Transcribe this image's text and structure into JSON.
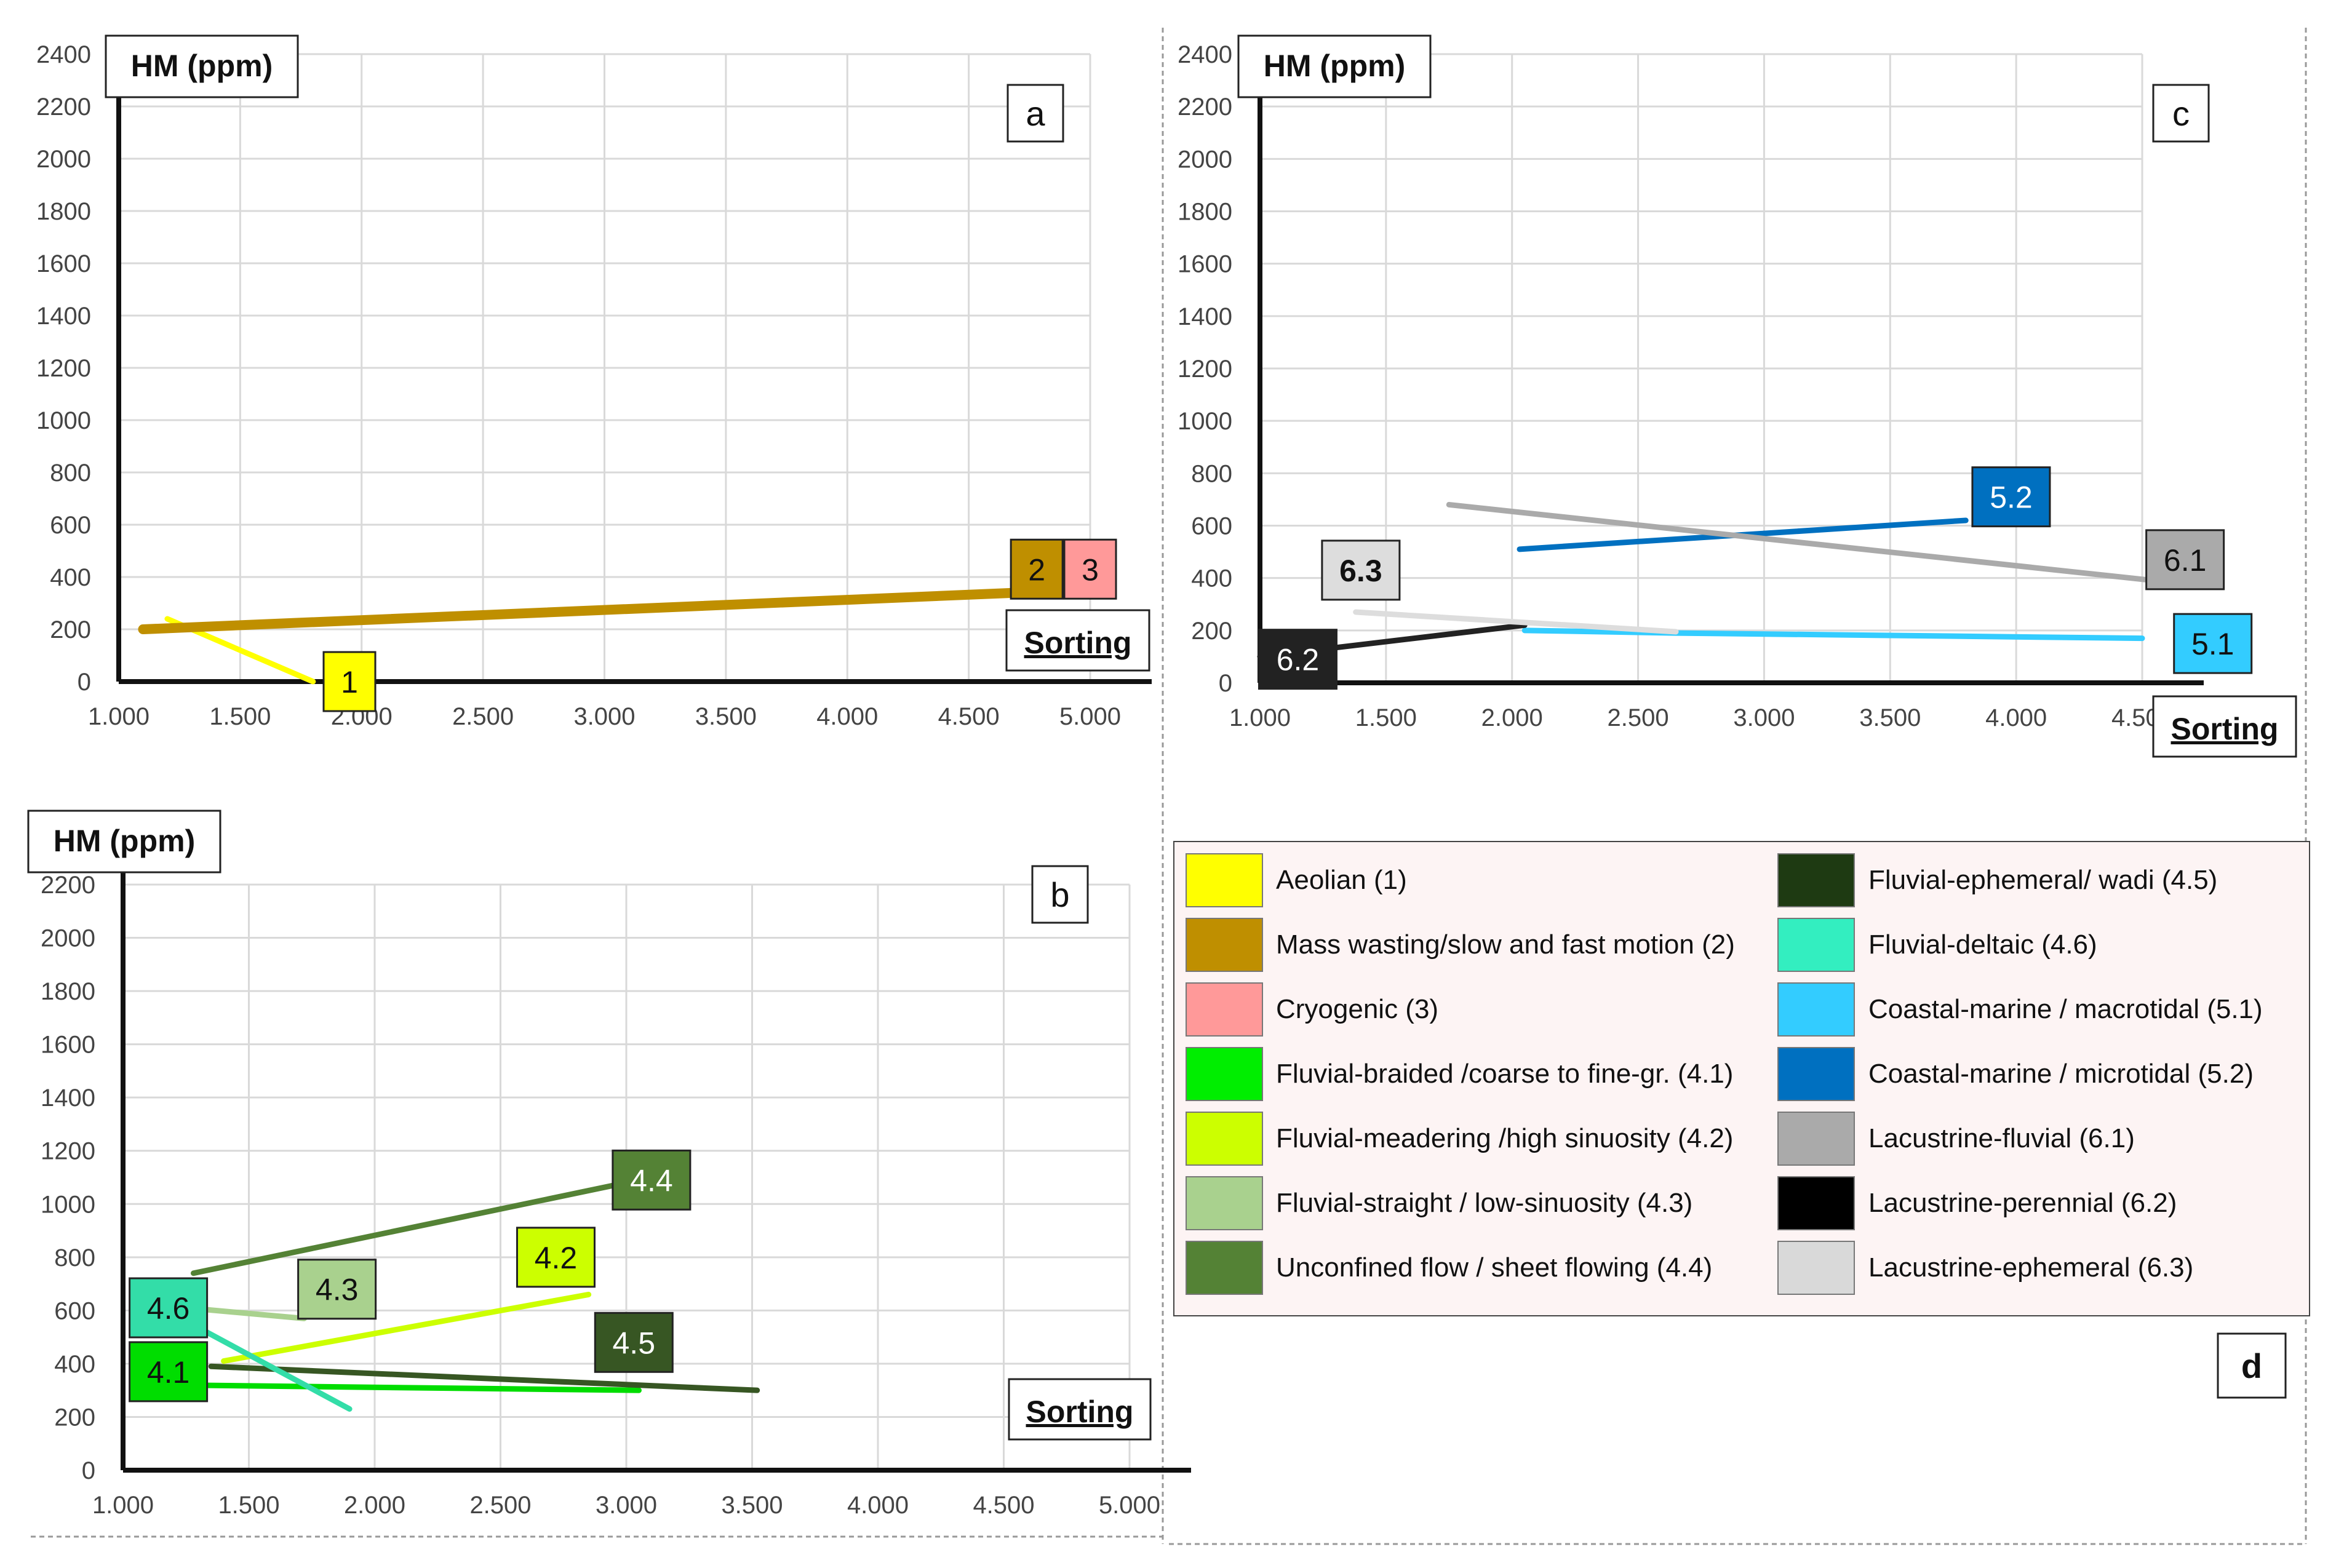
{
  "chart_data": [
    {
      "panel": "a",
      "type": "line",
      "ylabel": "HM (ppm)",
      "xlabel": "Sorting",
      "xlim": [
        1.0,
        5.0
      ],
      "ylim": [
        0,
        2400
      ],
      "xticks": [
        "1.000",
        "1.500",
        "2.000",
        "2.500",
        "3.000",
        "3.500",
        "4.000",
        "4.500",
        "5.000"
      ],
      "yticks": [
        "0",
        "200",
        "400",
        "600",
        "800",
        "1000",
        "1200",
        "1400",
        "1600",
        "1800",
        "2000",
        "2200",
        "2400"
      ],
      "grid": true,
      "series": [
        {
          "name": "1",
          "color": "#ffff00",
          "x": [
            1.2,
            1.8
          ],
          "y": [
            240,
            0
          ],
          "label_at": [
            1.95,
            0
          ]
        },
        {
          "name": "2",
          "color": "#bf8f00",
          "x": [
            1.1,
            4.7
          ],
          "y": [
            200,
            340
          ],
          "label_at": [
            4.78,
            430
          ]
        },
        {
          "name": "3",
          "color": "#ff9999",
          "x": [],
          "y": [],
          "label_at": [
            5.0,
            430
          ]
        }
      ]
    },
    {
      "panel": "b",
      "type": "line",
      "ylabel": "HM (ppm)",
      "xlabel": "Sorting",
      "xlim": [
        1.0,
        5.0
      ],
      "ylim": [
        0,
        2200
      ],
      "xticks": [
        "1.000",
        "1.500",
        "2.000",
        "2.500",
        "3.000",
        "3.500",
        "4.000",
        "4.500",
        "5.000"
      ],
      "yticks": [
        "0",
        "200",
        "400",
        "600",
        "800",
        "1000",
        "1200",
        "1400",
        "1600",
        "1800",
        "2000",
        "2200"
      ],
      "grid": true,
      "series": [
        {
          "name": "4.1",
          "color": "#00dd00",
          "x": [
            1.2,
            3.05
          ],
          "y": [
            320,
            300
          ],
          "label_at": [
            1.18,
            370
          ]
        },
        {
          "name": "4.2",
          "color": "#ccff00",
          "x": [
            1.4,
            2.85
          ],
          "y": [
            410,
            660
          ],
          "label_at": [
            2.72,
            800
          ]
        },
        {
          "name": "4.3",
          "color": "#a9d18e",
          "x": [
            1.25,
            1.72
          ],
          "y": [
            610,
            570
          ],
          "label_at": [
            1.85,
            680
          ]
        },
        {
          "name": "4.4",
          "color": "#548235",
          "x": [
            1.28,
            3.0
          ],
          "y": [
            740,
            1080
          ],
          "label_at": [
            3.1,
            1090
          ]
        },
        {
          "name": "4.5",
          "color": "#375623",
          "x": [
            1.35,
            3.52
          ],
          "y": [
            390,
            300
          ],
          "label_at": [
            3.03,
            480
          ]
        },
        {
          "name": "4.6",
          "color": "#33dda8",
          "x": [
            1.33,
            1.9
          ],
          "y": [
            520,
            230
          ],
          "label_at": [
            1.18,
            610
          ]
        }
      ]
    },
    {
      "panel": "c",
      "type": "line",
      "ylabel": "HM (ppm)",
      "xlabel": "Sorting",
      "xlim": [
        1.0,
        4.5
      ],
      "ylim": [
        0,
        2400
      ],
      "xticks": [
        "1.000",
        "1.500",
        "2.000",
        "2.500",
        "3.000",
        "3.500",
        "4.000",
        "4.500"
      ],
      "yticks": [
        "0",
        "200",
        "400",
        "600",
        "800",
        "1000",
        "1200",
        "1400",
        "1600",
        "1800",
        "2000",
        "2200",
        "2400"
      ],
      "grid": true,
      "series": [
        {
          "name": "5.1",
          "color": "#33ccff",
          "x": [
            2.05,
            2.65,
            4.5
          ],
          "y": [
            200,
            190,
            170
          ],
          "label_at": [
            4.78,
            150
          ]
        },
        {
          "name": "5.2",
          "color": "#0070c0",
          "x": [
            2.03,
            3.8
          ],
          "y": [
            510,
            620
          ],
          "label_at": [
            3.98,
            710
          ]
        },
        {
          "name": "6.1",
          "color": "#aaaaaa",
          "x": [
            1.75,
            4.55
          ],
          "y": [
            680,
            390
          ],
          "label_at": [
            4.67,
            470
          ]
        },
        {
          "name": "6.2",
          "color": "#222222",
          "x": [
            1.0,
            2.05
          ],
          "y": [
            100,
            220
          ],
          "label_at": [
            1.15,
            90
          ]
        },
        {
          "name": "6.3",
          "color": "#dddddd",
          "x": [
            1.38,
            2.65
          ],
          "y": [
            270,
            195
          ],
          "label_at": [
            1.4,
            430
          ]
        }
      ]
    }
  ],
  "panels": {
    "a": "a",
    "b": "b",
    "c": "c",
    "d": "d"
  },
  "legend": {
    "left": [
      {
        "label": "Aeolian (1)",
        "color": "#ffff00"
      },
      {
        "label": "Mass wasting/slow and fast motion (2)",
        "color": "#bf8f00"
      },
      {
        "label": "Cryogenic (3)",
        "color": "#ff9999"
      },
      {
        "label": "Fluvial-braided /coarse to fine-gr. (4.1)",
        "color": "#00ee00"
      },
      {
        "label": "Fluvial-meadering /high sinuosity (4.2)",
        "color": "#ccff00"
      },
      {
        "label": "Fluvial-straight / low-sinuosity  (4.3)",
        "color": "#a9d18e"
      },
      {
        "label": "Unconfined flow / sheet flowing (4.4)",
        "color": "#548235"
      }
    ],
    "right": [
      {
        "label": "Fluvial-ephemeral/ wadi  (4.5)",
        "color": "#1e3a12"
      },
      {
        "label": "Fluvial-deltaic (4.6)",
        "color": "#33eec0"
      },
      {
        "label": "Coastal-marine / macrotidal (5.1)",
        "color": "#33ccff"
      },
      {
        "label": "Coastal-marine / microtidal (5.2)",
        "color": "#0070c0"
      },
      {
        "label": "Lacustrine-fluvial (6.1)",
        "color": "#aaaaaa"
      },
      {
        "label": "Lacustrine-perennial (6.2)",
        "color": "#000000"
      },
      {
        "label": "Lacustrine-ephemeral (6.3)",
        "color": "#d9d9d9"
      }
    ]
  }
}
